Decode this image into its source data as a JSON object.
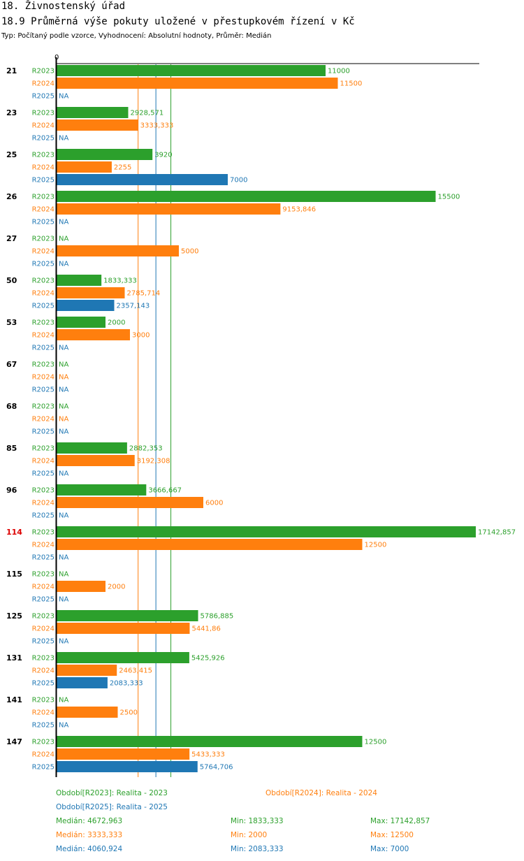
{
  "chart_data": {
    "type": "bar",
    "orientation": "horizontal",
    "heading": "18. Živnostenský úřad",
    "title": "18.9 Průměrná výše pokuty uložené v přestupkovém řízení v Kč",
    "subtitle": "Typ: Počítaný podle vzorce, Vyhodnocení: Absolutní hodnoty, Průměr: Medián",
    "axis_zero_label": "0",
    "xlim": [
      0,
      17142.857
    ],
    "na_label": "NA",
    "categories": [
      "21",
      "23",
      "25",
      "26",
      "27",
      "50",
      "53",
      "67",
      "68",
      "85",
      "96",
      "114",
      "115",
      "125",
      "131",
      "141",
      "147"
    ],
    "highlight_category": "114",
    "highlight_color": "#dd0000",
    "series": [
      {
        "name": "R2023",
        "color": "#2ca02c",
        "values": [
          11000,
          2928.571,
          3920,
          15500,
          null,
          1833.333,
          2000,
          null,
          null,
          2882.353,
          3666.667,
          17142.857,
          null,
          5786.885,
          5425.926,
          null,
          12500
        ],
        "labels": [
          "11000",
          "2928,571",
          "3920",
          "15500",
          "NA",
          "1833,333",
          "2000",
          "NA",
          "NA",
          "2882,353",
          "3666,667",
          "17142,857",
          "NA",
          "5786,885",
          "5425,926",
          "NA",
          "12500"
        ],
        "legend": "Období[R2023]: Realita - 2023",
        "median": 4672.963,
        "median_label": "Medián: 4672,963",
        "min_label": "Min: 1833,333",
        "max_label": "Max: 17142,857"
      },
      {
        "name": "R2024",
        "color": "#ff7f0e",
        "values": [
          11500,
          3333.333,
          2255,
          9153.846,
          5000,
          2785.714,
          3000,
          null,
          null,
          3192.308,
          6000,
          12500,
          2000,
          5441.86,
          2463.415,
          2500,
          5433.333
        ],
        "labels": [
          "11500",
          "3333,333",
          "2255",
          "9153,846",
          "5000",
          "2785,714",
          "3000",
          "NA",
          "NA",
          "3192,308",
          "6000",
          "12500",
          "2000",
          "5441,86",
          "2463,415",
          "2500",
          "5433,333"
        ],
        "legend": "Období[R2024]: Realita - 2024",
        "median": 3333.333,
        "median_label": "Medián: 3333,333",
        "min_label": "Min: 2000",
        "max_label": "Max: 12500"
      },
      {
        "name": "R2025",
        "color": "#1f77b4",
        "values": [
          null,
          null,
          7000,
          null,
          null,
          2357.143,
          null,
          null,
          null,
          null,
          null,
          null,
          null,
          null,
          2083.333,
          null,
          5764.706
        ],
        "labels": [
          "NA",
          "NA",
          "7000",
          "NA",
          "NA",
          "2357,143",
          "NA",
          "NA",
          "NA",
          "NA",
          "NA",
          "NA",
          "NA",
          "NA",
          "2083,333",
          "NA",
          "5764,706"
        ],
        "legend": "Období[R2025]: Realita - 2025",
        "median": 4060.924,
        "median_label": "Medián: 4060,924",
        "min_label": "Min: 2083,333",
        "max_label": "Max: 7000"
      }
    ]
  }
}
